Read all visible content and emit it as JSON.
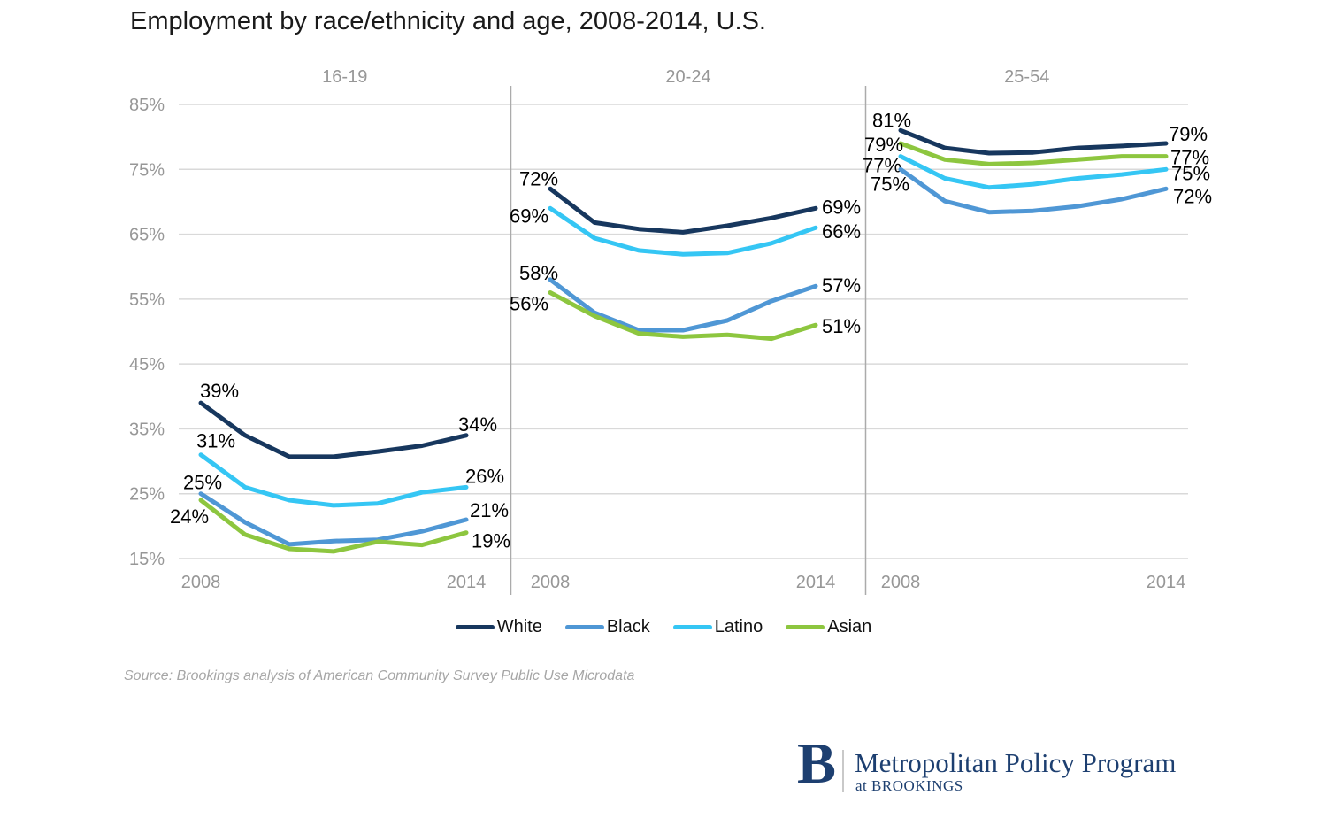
{
  "page": {
    "title": "Employment by race/ethnicity and age, 2008-2014, U.S.",
    "source_note": "Source: Brookings analysis of American Community Survey Public Use Microdata"
  },
  "colors": {
    "series": {
      "White": "#17375e",
      "Black": "#4f97d5",
      "Latino": "#35c6f4",
      "Asian": "#8dc63f"
    },
    "axis_text": "#979797",
    "grid": "#d9d9d9",
    "divider": "#ababab",
    "value_label": "#000000",
    "title_text": "#1a1a1a",
    "source_text": "#a6a6a6",
    "brand_navy": "#1d3f70",
    "logo_divider": "#c9c9c9"
  },
  "legend": {
    "items": [
      {
        "label": "White"
      },
      {
        "label": "Black"
      },
      {
        "label": "Latino"
      },
      {
        "label": "Asian"
      }
    ]
  },
  "footer_logo": {
    "letter": "B",
    "program": "Metropolitan Policy Program",
    "subtitle": "at BROOKINGS"
  },
  "chart_data": {
    "type": "line",
    "title": "Employment by race/ethnicity and age, 2008-2014, U.S.",
    "x": [
      2008,
      2009,
      2010,
      2011,
      2012,
      2013,
      2014
    ],
    "x_axis_labels": [
      "2008",
      "2014"
    ],
    "xlabel": "",
    "ylabel": "",
    "yticks": [
      85,
      75,
      65,
      55,
      45,
      35,
      25,
      15
    ],
    "ytick_suffix": "%",
    "ylim": [
      15,
      85
    ],
    "grid": true,
    "legend_position": "bottom",
    "panels": [
      {
        "title": "16-19",
        "series": [
          {
            "name": "White",
            "values": [
              39,
              34,
              30.7,
              30.7,
              31.5,
              32.4,
              34
            ],
            "start_label": {
              "text": "39%",
              "dx": -1,
              "dy": -6
            },
            "end_label": {
              "text": "34%",
              "dx": -9,
              "dy": -5
            }
          },
          {
            "name": "Latino",
            "values": [
              31,
              26,
              24,
              23.2,
              23.5,
              25.2,
              26
            ],
            "start_label": {
              "text": "31%",
              "dx": -5,
              "dy": -8
            },
            "end_label": {
              "text": "26%",
              "dx": -1,
              "dy": -5
            }
          },
          {
            "name": "Black",
            "values": [
              25,
              20.6,
              17.2,
              17.7,
              17.9,
              19.2,
              21
            ],
            "start_label": {
              "text": "25%",
              "dx": -20,
              "dy": -5
            },
            "end_label": {
              "text": "21%",
              "dx": 4,
              "dy": -3
            }
          },
          {
            "name": "Asian",
            "values": [
              24,
              18.7,
              16.5,
              16.1,
              17.6,
              17.1,
              19
            ],
            "start_label": {
              "text": "24%",
              "dx": -35,
              "dy": 26
            },
            "end_label": {
              "text": "19%",
              "dx": 6,
              "dy": 17
            }
          }
        ]
      },
      {
        "title": "20-24",
        "series": [
          {
            "name": "White",
            "values": [
              72,
              66.8,
              65.8,
              65.3,
              66.3,
              67.5,
              69
            ],
            "start_label": {
              "text": "72%",
              "dx": -35,
              "dy": -4
            },
            "end_label": {
              "text": "69%",
              "dx": 7,
              "dy": 6
            }
          },
          {
            "name": "Latino",
            "values": [
              69,
              64.4,
              62.5,
              61.9,
              62.1,
              63.6,
              66
            ],
            "start_label": {
              "text": "69%",
              "dx": -46,
              "dy": 16
            },
            "end_label": {
              "text": "66%",
              "dx": 7,
              "dy": 12
            }
          },
          {
            "name": "Black",
            "values": [
              58,
              52.9,
              50.2,
              50.2,
              51.7,
              54.7,
              57
            ],
            "start_label": {
              "text": "58%",
              "dx": -35,
              "dy": 0
            },
            "end_label": {
              "text": "57%",
              "dx": 7,
              "dy": 7
            }
          },
          {
            "name": "Asian",
            "values": [
              56,
              52.4,
              49.7,
              49.2,
              49.5,
              48.9,
              51
            ],
            "start_label": {
              "text": "56%",
              "dx": -46,
              "dy": 20
            },
            "end_label": {
              "text": "51%",
              "dx": 7,
              "dy": 9
            }
          }
        ]
      },
      {
        "title": "25-54",
        "series": [
          {
            "name": "White",
            "values": [
              81,
              78.3,
              77.5,
              77.6,
              78.3,
              78.6,
              79
            ],
            "start_label": {
              "text": "81%",
              "dx": -32,
              "dy": -4
            },
            "end_label": {
              "text": "79%",
              "dx": 3,
              "dy": -3
            }
          },
          {
            "name": "Asian",
            "values": [
              79,
              76.5,
              75.8,
              76,
              76.5,
              77,
              77
            ],
            "start_label": {
              "text": "79%",
              "dx": -41,
              "dy": 9
            },
            "end_label": {
              "text": "77%",
              "dx": 5,
              "dy": 9
            }
          },
          {
            "name": "Latino",
            "values": [
              77,
              73.6,
              72.2,
              72.7,
              73.6,
              74.2,
              75
            ],
            "start_label": {
              "text": "77%",
              "dx": -43,
              "dy": 18
            },
            "end_label": {
              "text": "75%",
              "dx": 6,
              "dy": 12
            }
          },
          {
            "name": "Black",
            "values": [
              75,
              70.1,
              68.4,
              68.6,
              69.3,
              70.4,
              72
            ],
            "start_label": {
              "text": "75%",
              "dx": -34,
              "dy": 24
            },
            "end_label": {
              "text": "72%",
              "dx": 8,
              "dy": 16
            }
          }
        ]
      }
    ]
  }
}
